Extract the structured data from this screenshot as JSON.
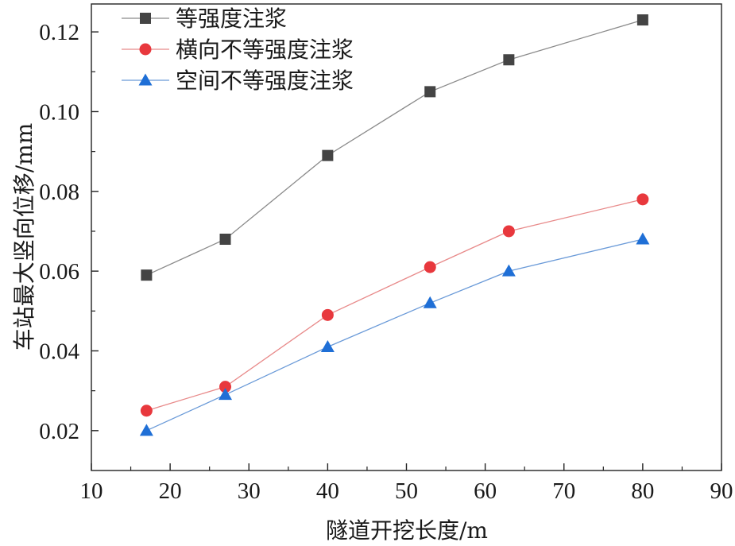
{
  "chart_data": {
    "type": "line",
    "xlabel": "隧道开挖长度/m",
    "ylabel": "车站最大竖向位移/mm",
    "xlim": [
      10,
      90
    ],
    "ylim": [
      0.01,
      0.127
    ],
    "xticks": [
      10,
      20,
      30,
      40,
      50,
      60,
      70,
      80,
      90
    ],
    "yticks": [
      0.02,
      0.04,
      0.06,
      0.08,
      0.1,
      0.12
    ],
    "x": [
      17,
      27,
      40,
      53,
      63,
      80
    ],
    "grid": false,
    "legend_position": "top-left",
    "series": [
      {
        "name": "等强度注浆",
        "marker": "square",
        "color": "#444444",
        "line_color": "#8a8a8a",
        "values": [
          0.059,
          0.068,
          0.089,
          0.105,
          0.113,
          0.123
        ]
      },
      {
        "name": "横向不等强度注浆",
        "marker": "circle",
        "color": "#e8383d",
        "line_color": "#e88a8a",
        "values": [
          0.025,
          0.031,
          0.049,
          0.061,
          0.07,
          0.078
        ]
      },
      {
        "name": "空间不等强度注浆",
        "marker": "triangle",
        "color": "#1f6fd6",
        "line_color": "#6a9ad8",
        "values": [
          0.02,
          0.029,
          0.041,
          0.052,
          0.06,
          0.068
        ]
      }
    ]
  }
}
